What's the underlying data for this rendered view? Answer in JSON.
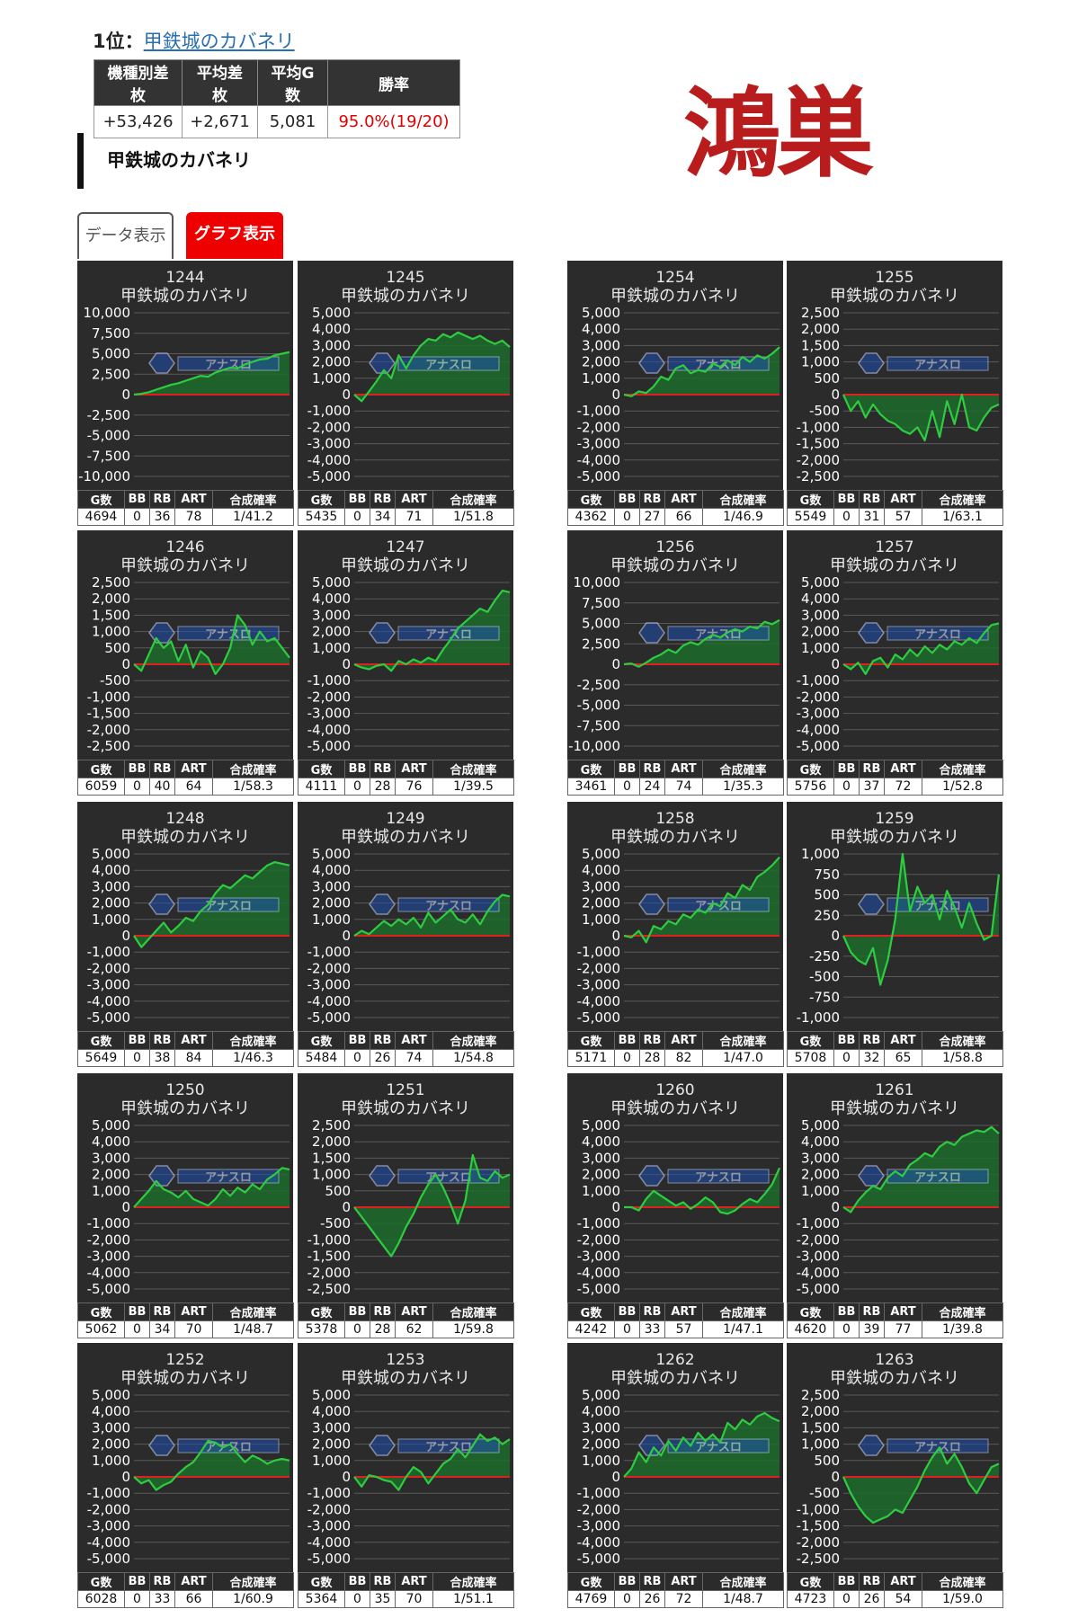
{
  "rank": {
    "prefix": "1位：",
    "machine_link": "甲鉄城のカバネリ"
  },
  "summary": {
    "headers": [
      "機種別差枚",
      "平均差枚",
      "平均G数",
      "勝率"
    ],
    "values": [
      "+53,426",
      "+2,671",
      "5,081",
      "95.0%(19/20)"
    ]
  },
  "logo_text": "鴻巣",
  "section_title": "甲鉄城のカバネリ",
  "tabs": {
    "data": "データ表示",
    "graph": "グラフ表示"
  },
  "stats_headers": [
    "G数",
    "BB",
    "RB",
    "ART",
    "合成確率"
  ],
  "watermark_text": "アナスロ",
  "colors": {
    "card_bg": "#2b2b2b",
    "line": "#2ecc40",
    "zero_line": "#e02020",
    "active_tab": "#ee0000",
    "logo": "#b81c1c"
  },
  "chart_data": [
    {
      "type": "line",
      "unit": "1244",
      "title": "甲鉄城のカバネリ",
      "ylim": [
        -10000,
        10000
      ],
      "y_ticks": [
        "10,000",
        "7,500",
        "5,000",
        "2,500",
        "0",
        "-2,500",
        "-5,000",
        "-7,500",
        "-10,000"
      ],
      "values": [
        0,
        100,
        300,
        600,
        900,
        1200,
        1400,
        1700,
        2000,
        2300,
        2200,
        2700,
        3000,
        3300,
        3200,
        3700,
        4000,
        4300,
        4400,
        4800,
        5000,
        5200
      ],
      "stats": [
        "4694",
        "0",
        "36",
        "78",
        "1/41.2"
      ]
    },
    {
      "type": "line",
      "unit": "1245",
      "title": "甲鉄城のカバネリ",
      "ylim": [
        -5000,
        5000
      ],
      "y_ticks": [
        "5,000",
        "4,000",
        "3,000",
        "2,000",
        "1,000",
        "0",
        "-1,000",
        "-2,000",
        "-3,000",
        "-4,000",
        "-5,000"
      ],
      "values": [
        0,
        -400,
        200,
        800,
        1500,
        1000,
        2400,
        1600,
        2400,
        3000,
        3400,
        3300,
        3700,
        3500,
        3800,
        3600,
        3400,
        3600,
        3300,
        3100,
        3300,
        2900
      ],
      "stats": [
        "5435",
        "0",
        "34",
        "71",
        "1/51.8"
      ]
    },
    {
      "type": "line",
      "unit": "1254",
      "title": "甲鉄城のカバネリ",
      "ylim": [
        -5000,
        5000
      ],
      "y_ticks": [
        "5,000",
        "4,000",
        "3,000",
        "2,000",
        "1,000",
        "0",
        "-1,000",
        "-2,000",
        "-3,000",
        "-4,000",
        "-5,000"
      ],
      "values": [
        0,
        -100,
        200,
        100,
        500,
        1100,
        900,
        1600,
        1800,
        1300,
        1500,
        1400,
        1900,
        1700,
        2100,
        1800,
        2300,
        2000,
        2400,
        2200,
        2500,
        2900
      ],
      "stats": [
        "4362",
        "0",
        "27",
        "66",
        "1/46.9"
      ]
    },
    {
      "type": "line",
      "unit": "1255",
      "title": "甲鉄城のカバネリ",
      "ylim": [
        -2500,
        2500
      ],
      "y_ticks": [
        "2,500",
        "2,000",
        "1,500",
        "1,000",
        "500",
        "0",
        "-500",
        "-1,000",
        "-1,500",
        "-2,000",
        "-2,500"
      ],
      "values": [
        0,
        -500,
        -200,
        -700,
        -300,
        -600,
        -800,
        -900,
        -1100,
        -1200,
        -1000,
        -1400,
        -500,
        -1300,
        -200,
        -900,
        0,
        -1000,
        -1100,
        -700,
        -400,
        -300
      ],
      "stats": [
        "5549",
        "0",
        "31",
        "57",
        "1/63.1"
      ]
    },
    {
      "type": "line",
      "unit": "1246",
      "title": "甲鉄城のカバネリ",
      "ylim": [
        -2500,
        2500
      ],
      "y_ticks": [
        "2,500",
        "2,000",
        "1,500",
        "1,000",
        "500",
        "0",
        "-500",
        "-1,000",
        "-1,500",
        "-2,000",
        "-2,500"
      ],
      "values": [
        0,
        -200,
        300,
        800,
        500,
        700,
        100,
        600,
        -100,
        400,
        200,
        -300,
        0,
        500,
        1500,
        1200,
        600,
        1000,
        700,
        800,
        500,
        200
      ],
      "stats": [
        "6059",
        "0",
        "40",
        "64",
        "1/58.3"
      ]
    },
    {
      "type": "line",
      "unit": "1247",
      "title": "甲鉄城のカバネリ",
      "ylim": [
        -5000,
        5000
      ],
      "y_ticks": [
        "5,000",
        "4,000",
        "3,000",
        "2,000",
        "1,000",
        "0",
        "-1,000",
        "-2,000",
        "-3,000",
        "-4,000",
        "-5,000"
      ],
      "values": [
        0,
        -200,
        -300,
        -100,
        0,
        -400,
        200,
        0,
        300,
        100,
        400,
        200,
        900,
        1500,
        2200,
        2600,
        3000,
        3400,
        3200,
        3900,
        4500,
        4400
      ],
      "stats": [
        "4111",
        "0",
        "28",
        "76",
        "1/39.5"
      ]
    },
    {
      "type": "line",
      "unit": "1256",
      "title": "甲鉄城のカバネリ",
      "ylim": [
        -10000,
        10000
      ],
      "y_ticks": [
        "10,000",
        "7,500",
        "5,000",
        "2,500",
        "0",
        "-2,500",
        "-5,000",
        "-7,500",
        "-10,000"
      ],
      "values": [
        0,
        100,
        -300,
        200,
        800,
        1200,
        1800,
        1400,
        2300,
        2700,
        2400,
        3100,
        3600,
        3300,
        3900,
        4300,
        4000,
        4600,
        4400,
        5200,
        4900,
        5400
      ],
      "stats": [
        "3461",
        "0",
        "24",
        "74",
        "1/35.3"
      ]
    },
    {
      "type": "line",
      "unit": "1257",
      "title": "甲鉄城のカバネリ",
      "ylim": [
        -5000,
        5000
      ],
      "y_ticks": [
        "5,000",
        "4,000",
        "3,000",
        "2,000",
        "1,000",
        "0",
        "-1,000",
        "-2,000",
        "-3,000",
        "-4,000",
        "-5,000"
      ],
      "values": [
        0,
        -300,
        100,
        -600,
        200,
        400,
        -200,
        600,
        300,
        900,
        500,
        1100,
        700,
        1200,
        900,
        1400,
        1200,
        1600,
        1300,
        1900,
        2400,
        2500
      ],
      "stats": [
        "5756",
        "0",
        "37",
        "72",
        "1/52.8"
      ]
    },
    {
      "type": "line",
      "unit": "1248",
      "title": "甲鉄城のカバネリ",
      "ylim": [
        -5000,
        5000
      ],
      "y_ticks": [
        "5,000",
        "4,000",
        "3,000",
        "2,000",
        "1,000",
        "0",
        "-1,000",
        "-2,000",
        "-3,000",
        "-4,000",
        "-5,000"
      ],
      "values": [
        0,
        -700,
        -200,
        300,
        800,
        200,
        600,
        1100,
        900,
        1500,
        1900,
        2600,
        3100,
        2900,
        3300,
        3700,
        3500,
        3900,
        4300,
        4500,
        4400,
        4300
      ],
      "stats": [
        "5649",
        "0",
        "38",
        "84",
        "1/46.3"
      ]
    },
    {
      "type": "line",
      "unit": "1249",
      "title": "甲鉄城のカバネリ",
      "ylim": [
        -5000,
        5000
      ],
      "y_ticks": [
        "5,000",
        "4,000",
        "3,000",
        "2,000",
        "1,000",
        "0",
        "-1,000",
        "-2,000",
        "-3,000",
        "-4,000",
        "-5,000"
      ],
      "values": [
        0,
        300,
        100,
        500,
        900,
        600,
        1000,
        700,
        1100,
        500,
        1400,
        800,
        1200,
        1600,
        1000,
        800,
        1300,
        700,
        1500,
        2100,
        2500,
        2400
      ],
      "stats": [
        "5484",
        "0",
        "26",
        "74",
        "1/54.8"
      ]
    },
    {
      "type": "line",
      "unit": "1258",
      "title": "甲鉄城のカバネリ",
      "ylim": [
        -5000,
        5000
      ],
      "y_ticks": [
        "5,000",
        "4,000",
        "3,000",
        "2,000",
        "1,000",
        "0",
        "-1,000",
        "-2,000",
        "-3,000",
        "-4,000",
        "-5,000"
      ],
      "values": [
        0,
        -100,
        300,
        -400,
        600,
        400,
        900,
        700,
        1300,
        1100,
        1600,
        1400,
        2000,
        1800,
        2600,
        2300,
        3100,
        2800,
        3600,
        3900,
        4300,
        4800
      ],
      "stats": [
        "5171",
        "0",
        "28",
        "82",
        "1/47.0"
      ]
    },
    {
      "type": "line",
      "unit": "1259",
      "title": "甲鉄城のカバネリ",
      "ylim": [
        -1000,
        1000
      ],
      "y_ticks": [
        "1,000",
        "750",
        "500",
        "250",
        "0",
        "-250",
        "-500",
        "-750",
        "-1,000"
      ],
      "values": [
        0,
        -200,
        -300,
        -350,
        -150,
        -600,
        -300,
        200,
        1000,
        300,
        600,
        400,
        500,
        200,
        550,
        350,
        100,
        400,
        150,
        -50,
        0,
        750
      ],
      "stats": [
        "5708",
        "0",
        "32",
        "65",
        "1/58.8"
      ]
    },
    {
      "type": "line",
      "unit": "1250",
      "title": "甲鉄城のカバネリ",
      "ylim": [
        -5000,
        5000
      ],
      "y_ticks": [
        "5,000",
        "4,000",
        "3,000",
        "2,000",
        "1,000",
        "0",
        "-1,000",
        "-2,000",
        "-3,000",
        "-4,000",
        "-5,000"
      ],
      "values": [
        0,
        500,
        1000,
        1600,
        1100,
        900,
        600,
        1000,
        500,
        300,
        100,
        500,
        1100,
        700,
        1200,
        900,
        1400,
        1100,
        1700,
        2000,
        2400,
        2300
      ],
      "stats": [
        "5062",
        "0",
        "34",
        "70",
        "1/48.7"
      ]
    },
    {
      "type": "line",
      "unit": "1251",
      "title": "甲鉄城のカバネリ",
      "ylim": [
        -2500,
        2500
      ],
      "y_ticks": [
        "2,500",
        "2,000",
        "1,500",
        "1,000",
        "500",
        "0",
        "-500",
        "-1,000",
        "-1,500",
        "-2,000",
        "-2,500"
      ],
      "values": [
        0,
        -300,
        -600,
        -900,
        -1200,
        -1500,
        -1100,
        -600,
        -200,
        300,
        700,
        1000,
        600,
        100,
        -500,
        200,
        1600,
        900,
        800,
        1100,
        900,
        1000
      ],
      "stats": [
        "5378",
        "0",
        "28",
        "62",
        "1/59.8"
      ]
    },
    {
      "type": "line",
      "unit": "1260",
      "title": "甲鉄城のカバネリ",
      "ylim": [
        -5000,
        5000
      ],
      "y_ticks": [
        "5,000",
        "4,000",
        "3,000",
        "2,000",
        "1,000",
        "0",
        "-1,000",
        "-2,000",
        "-3,000",
        "-4,000",
        "-5,000"
      ],
      "values": [
        0,
        0,
        -200,
        500,
        1000,
        700,
        400,
        100,
        300,
        -100,
        200,
        600,
        300,
        -300,
        -400,
        -200,
        200,
        500,
        300,
        800,
        1400,
        2400
      ],
      "stats": [
        "4242",
        "0",
        "33",
        "57",
        "1/47.1"
      ]
    },
    {
      "type": "line",
      "unit": "1261",
      "title": "甲鉄城のカバネリ",
      "ylim": [
        -5000,
        5000
      ],
      "y_ticks": [
        "5,000",
        "4,000",
        "3,000",
        "2,000",
        "1,000",
        "0",
        "-1,000",
        "-2,000",
        "-3,000",
        "-4,000",
        "-5,000"
      ],
      "values": [
        0,
        -300,
        400,
        900,
        1300,
        1100,
        1800,
        2200,
        1900,
        2600,
        2900,
        3300,
        3100,
        3700,
        4000,
        3800,
        4300,
        4500,
        4700,
        4600,
        4900,
        4500
      ],
      "stats": [
        "4620",
        "0",
        "39",
        "77",
        "1/39.8"
      ]
    },
    {
      "type": "line",
      "unit": "1252",
      "title": "甲鉄城のカバネリ",
      "ylim": [
        -5000,
        5000
      ],
      "y_ticks": [
        "5,000",
        "4,000",
        "3,000",
        "2,000",
        "1,000",
        "0",
        "-1,000",
        "-2,000",
        "-3,000",
        "-4,000",
        "-5,000"
      ],
      "values": [
        0,
        -400,
        -200,
        -800,
        -500,
        -300,
        200,
        600,
        900,
        1500,
        2200,
        2100,
        1800,
        2000,
        1400,
        900,
        1300,
        1100,
        800,
        1000,
        1100,
        1000
      ],
      "stats": [
        "6028",
        "0",
        "33",
        "66",
        "1/60.9"
      ]
    },
    {
      "type": "line",
      "unit": "1253",
      "title": "甲鉄城のカバネリ",
      "ylim": [
        -5000,
        5000
      ],
      "y_ticks": [
        "5,000",
        "4,000",
        "3,000",
        "2,000",
        "1,000",
        "0",
        "-1,000",
        "-2,000",
        "-3,000",
        "-4,000",
        "-5,000"
      ],
      "values": [
        0,
        -600,
        100,
        0,
        -200,
        -300,
        -800,
        0,
        600,
        300,
        -400,
        200,
        800,
        1100,
        1700,
        1200,
        1900,
        2600,
        2200,
        2400,
        2000,
        2300
      ],
      "stats": [
        "5364",
        "0",
        "35",
        "70",
        "1/51.1"
      ]
    },
    {
      "type": "line",
      "unit": "1262",
      "title": "甲鉄城のカバネリ",
      "ylim": [
        -5000,
        5000
      ],
      "y_ticks": [
        "5,000",
        "4,000",
        "3,000",
        "2,000",
        "1,000",
        "0",
        "-1,000",
        "-2,000",
        "-3,000",
        "-4,000",
        "-5,000"
      ],
      "values": [
        0,
        500,
        1500,
        900,
        1800,
        1300,
        2200,
        1600,
        2400,
        1900,
        2700,
        2200,
        2600,
        2100,
        3300,
        2900,
        3500,
        3200,
        3700,
        3900,
        3600,
        3400
      ],
      "stats": [
        "4769",
        "0",
        "26",
        "72",
        "1/48.7"
      ]
    },
    {
      "type": "line",
      "unit": "1263",
      "title": "甲鉄城のカバネリ",
      "ylim": [
        -2500,
        2500
      ],
      "y_ticks": [
        "2,500",
        "2,000",
        "1,500",
        "1,000",
        "500",
        "0",
        "-500",
        "-1,000",
        "-1,500",
        "-2,000",
        "-2,500"
      ],
      "values": [
        0,
        -500,
        -900,
        -1200,
        -1400,
        -1300,
        -1200,
        -1000,
        -1100,
        -700,
        -300,
        200,
        600,
        900,
        400,
        700,
        300,
        -200,
        -500,
        -100,
        300,
        400
      ],
      "stats": [
        "4723",
        "0",
        "26",
        "54",
        "1/59.0"
      ]
    }
  ]
}
